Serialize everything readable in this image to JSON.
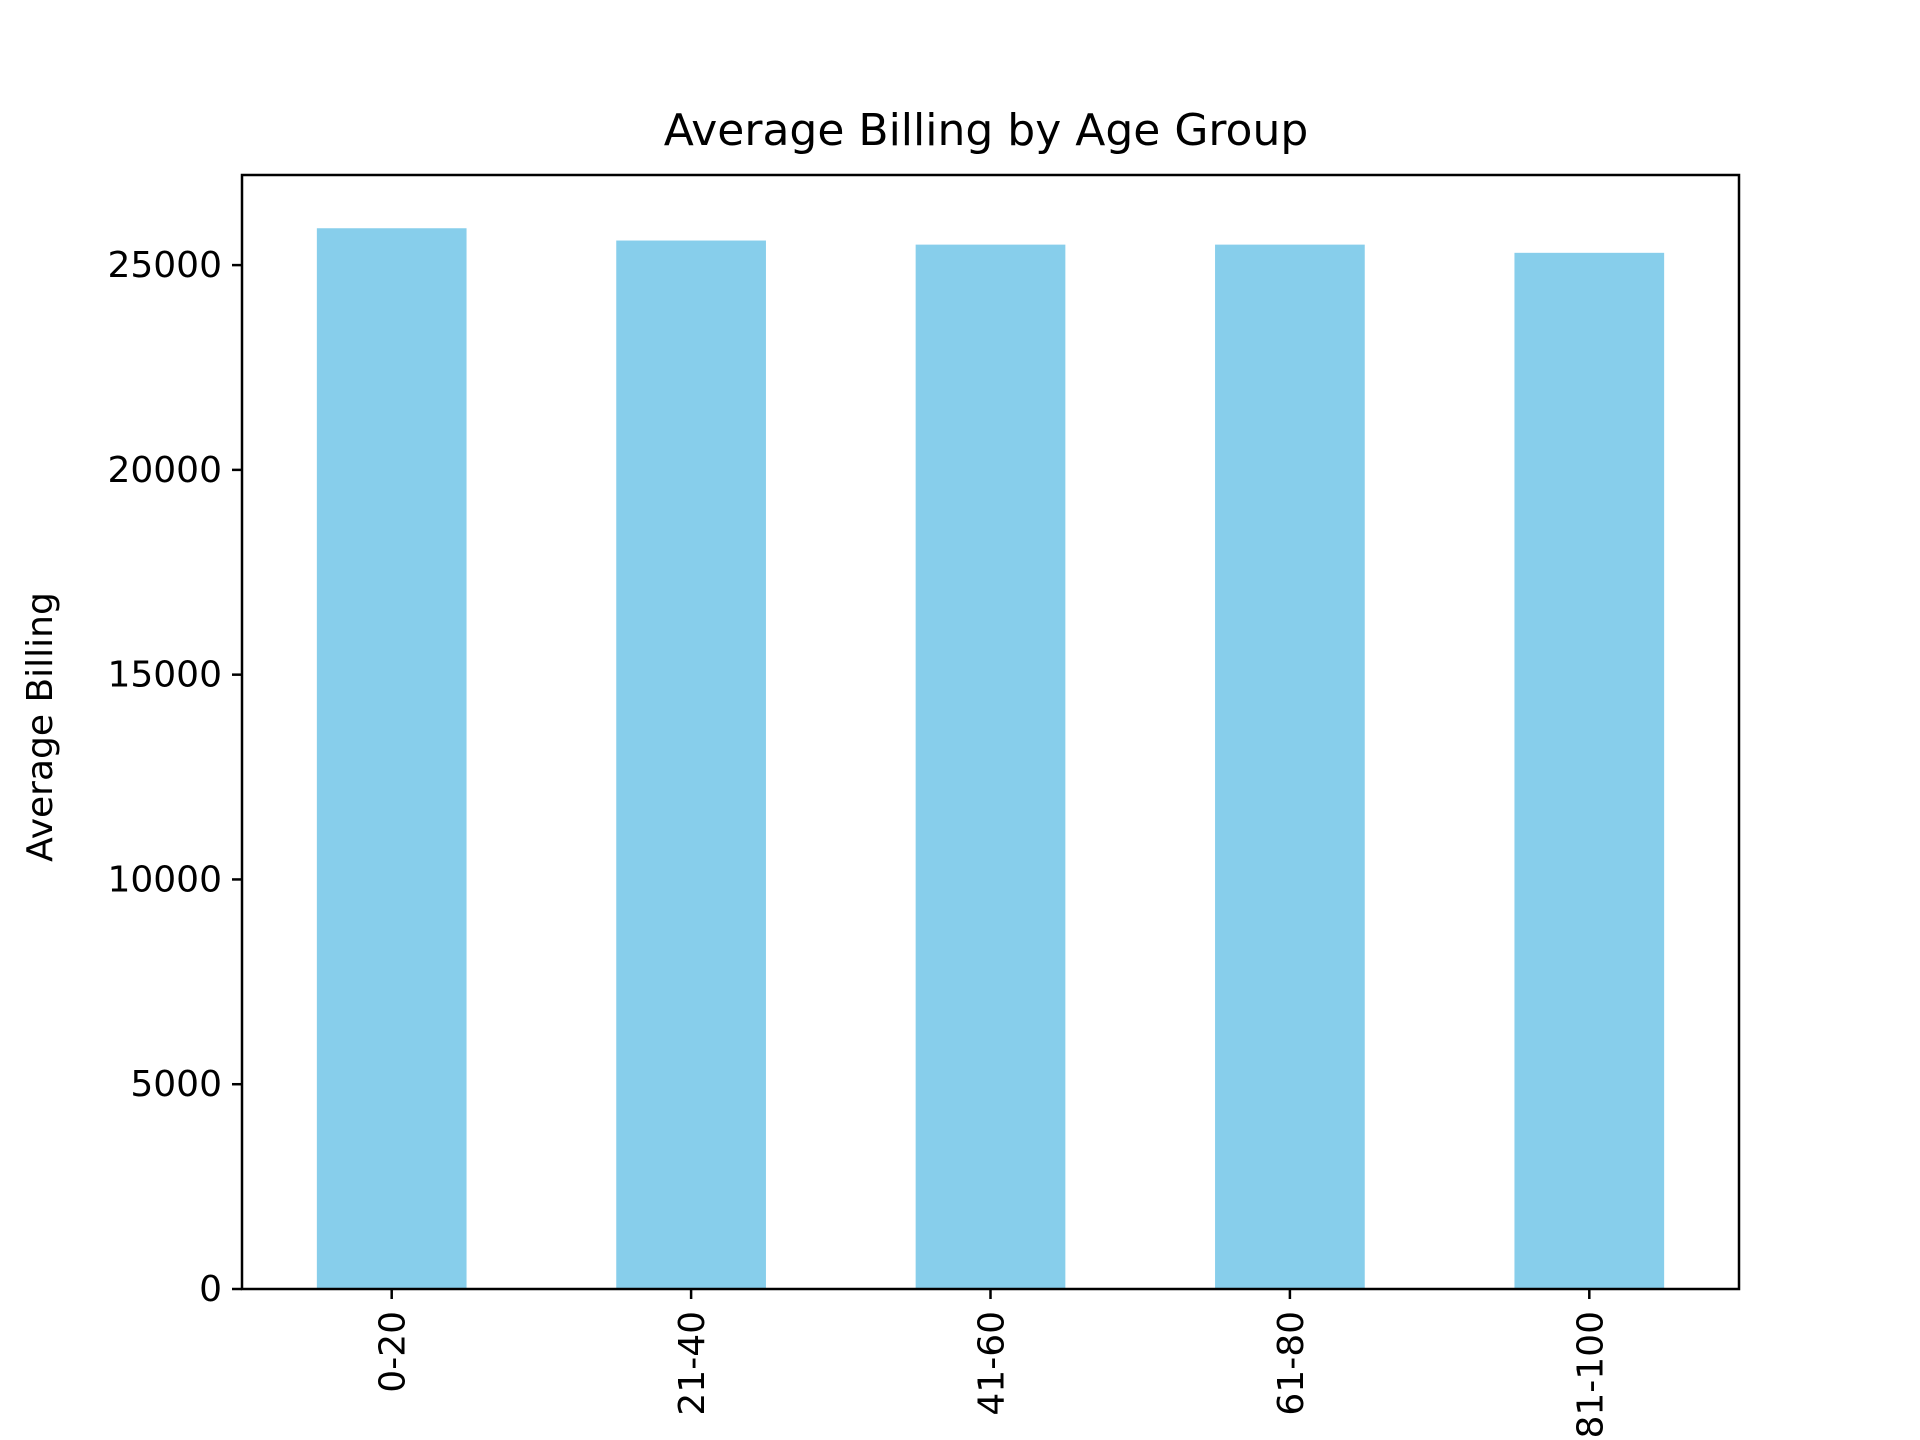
{
  "chart_data": {
    "type": "bar",
    "title": "Average Billing by Age Group",
    "xlabel": "",
    "ylabel": "Average Billing",
    "categories": [
      "0-20",
      "21-40",
      "41-60",
      "61-80",
      "81-100"
    ],
    "values": [
      25900,
      25600,
      25500,
      25500,
      25300
    ],
    "ylim": [
      0,
      27200
    ],
    "yticks": [
      0,
      5000,
      10000,
      15000,
      20000,
      25000
    ],
    "ytick_labels": [
      "0",
      "5000",
      "10000",
      "15000",
      "20000",
      "25000"
    ],
    "x_tick_rotation": "vertical",
    "grid": false,
    "legend": "none",
    "colors": {
      "bar": "#87ceeb",
      "axes": "#000000",
      "background": "#ffffff"
    }
  }
}
